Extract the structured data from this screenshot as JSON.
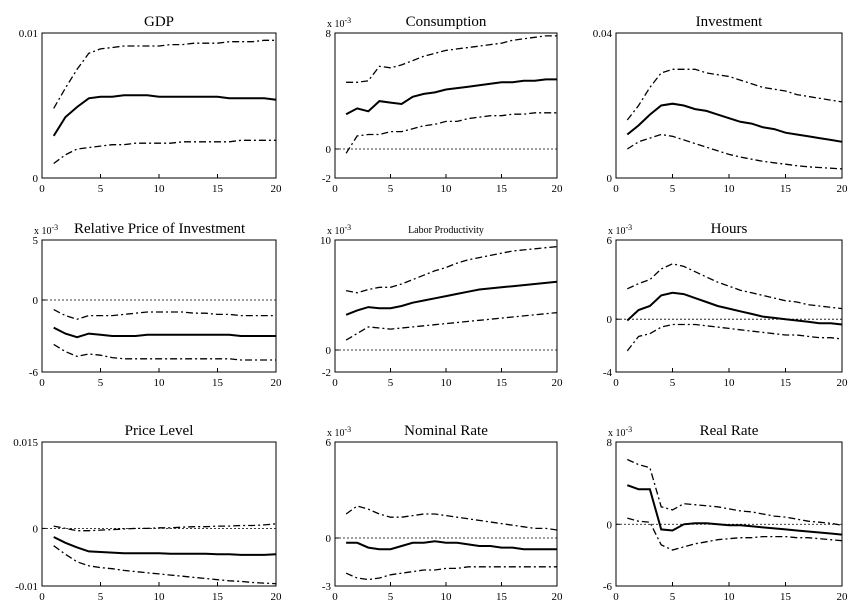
{
  "chart_data": [
    {
      "type": "line",
      "title": "GDP",
      "scale_label": "",
      "x": [
        1,
        2,
        3,
        4,
        5,
        6,
        7,
        8,
        9,
        10,
        11,
        12,
        13,
        14,
        15,
        16,
        17,
        18,
        19,
        20
      ],
      "xlim": [
        0,
        20
      ],
      "xticks": [
        "0",
        "5",
        "10",
        "15",
        "20"
      ],
      "ylim": [
        0,
        0.01
      ],
      "yticks": [
        {
          "v": 0,
          "t": "0"
        },
        {
          "v": 0.01,
          "t": "0.01"
        }
      ],
      "zero_line": false,
      "series": [
        {
          "role": "upper",
          "values": [
            0.0048,
            0.0062,
            0.0075,
            0.0086,
            0.0089,
            0.009,
            0.0091,
            0.0091,
            0.0091,
            0.0091,
            0.0092,
            0.0092,
            0.0093,
            0.0093,
            0.0093,
            0.0094,
            0.0094,
            0.0094,
            0.0095,
            0.0095
          ]
        },
        {
          "role": "median",
          "values": [
            0.0029,
            0.0042,
            0.0049,
            0.0055,
            0.0056,
            0.0056,
            0.0057,
            0.0057,
            0.0057,
            0.0056,
            0.0056,
            0.0056,
            0.0056,
            0.0056,
            0.0056,
            0.0055,
            0.0055,
            0.0055,
            0.0055,
            0.0054
          ]
        },
        {
          "role": "lower",
          "values": [
            0.001,
            0.0016,
            0.002,
            0.0021,
            0.0022,
            0.0023,
            0.0023,
            0.0024,
            0.0024,
            0.0024,
            0.0024,
            0.0025,
            0.0025,
            0.0025,
            0.0025,
            0.0025,
            0.0026,
            0.0026,
            0.0026,
            0.0026
          ]
        }
      ]
    },
    {
      "type": "line",
      "title": "Consumption",
      "scale_label": "x 10",
      "x": [
        1,
        2,
        3,
        4,
        5,
        6,
        7,
        8,
        9,
        10,
        11,
        12,
        13,
        14,
        15,
        16,
        17,
        18,
        19,
        20
      ],
      "xlim": [
        0,
        20
      ],
      "xticks": [
        "0",
        "5",
        "10",
        "15",
        "20"
      ],
      "ylim": [
        -2,
        8
      ],
      "yticks": [
        {
          "v": -2,
          "t": "-2"
        },
        {
          "v": 0,
          "t": "0"
        },
        {
          "v": 8,
          "t": "8"
        }
      ],
      "zero_line": true,
      "series": [
        {
          "role": "upper",
          "values": [
            4.6,
            4.6,
            4.7,
            5.7,
            5.6,
            5.8,
            6.1,
            6.4,
            6.6,
            6.8,
            6.9,
            7.0,
            7.1,
            7.2,
            7.3,
            7.5,
            7.6,
            7.7,
            7.8,
            7.8
          ]
        },
        {
          "role": "median",
          "values": [
            2.4,
            2.8,
            2.6,
            3.3,
            3.2,
            3.1,
            3.6,
            3.8,
            3.9,
            4.1,
            4.2,
            4.3,
            4.4,
            4.5,
            4.6,
            4.6,
            4.7,
            4.7,
            4.8,
            4.8
          ]
        },
        {
          "role": "lower",
          "values": [
            -0.3,
            0.9,
            1.0,
            1.0,
            1.2,
            1.2,
            1.4,
            1.6,
            1.7,
            1.9,
            1.9,
            2.1,
            2.2,
            2.3,
            2.3,
            2.4,
            2.4,
            2.5,
            2.5,
            2.5
          ]
        }
      ]
    },
    {
      "type": "line",
      "title": "Investment",
      "scale_label": "",
      "x": [
        1,
        2,
        3,
        4,
        5,
        6,
        7,
        8,
        9,
        10,
        11,
        12,
        13,
        14,
        15,
        16,
        17,
        18,
        19,
        20
      ],
      "xlim": [
        0,
        20
      ],
      "xticks": [
        "0",
        "5",
        "10",
        "15",
        "20"
      ],
      "ylim": [
        0,
        0.04
      ],
      "yticks": [
        {
          "v": 0,
          "t": "0"
        },
        {
          "v": 0.04,
          "t": "0.04"
        }
      ],
      "zero_line": false,
      "series": [
        {
          "role": "upper",
          "values": [
            0.016,
            0.02,
            0.025,
            0.029,
            0.03,
            0.03,
            0.03,
            0.029,
            0.0285,
            0.028,
            0.027,
            0.026,
            0.025,
            0.0245,
            0.024,
            0.023,
            0.0225,
            0.022,
            0.0215,
            0.021
          ]
        },
        {
          "role": "median",
          "values": [
            0.012,
            0.0145,
            0.0175,
            0.02,
            0.0205,
            0.02,
            0.019,
            0.0185,
            0.0175,
            0.0165,
            0.0155,
            0.015,
            0.014,
            0.0135,
            0.0125,
            0.012,
            0.0115,
            0.011,
            0.0105,
            0.01
          ]
        },
        {
          "role": "lower",
          "values": [
            0.008,
            0.01,
            0.011,
            0.012,
            0.0115,
            0.0105,
            0.0095,
            0.0085,
            0.0075,
            0.0065,
            0.0058,
            0.0052,
            0.0046,
            0.0042,
            0.0038,
            0.0034,
            0.0031,
            0.0029,
            0.0027,
            0.0025
          ]
        }
      ]
    },
    {
      "type": "line",
      "title": "Relative Price of Investment",
      "scale_label": "x 10",
      "x": [
        1,
        2,
        3,
        4,
        5,
        6,
        7,
        8,
        9,
        10,
        11,
        12,
        13,
        14,
        15,
        16,
        17,
        18,
        19,
        20
      ],
      "xlim": [
        0,
        20
      ],
      "xticks": [
        "0",
        "5",
        "10",
        "15",
        "20"
      ],
      "ylim": [
        -6,
        5
      ],
      "yticks": [
        {
          "v": -6,
          "t": "-6"
        },
        {
          "v": 0,
          "t": "0"
        },
        {
          "v": 5,
          "t": "5"
        }
      ],
      "zero_line": true,
      "series": [
        {
          "role": "upper",
          "values": [
            -0.8,
            -1.3,
            -1.6,
            -1.3,
            -1.3,
            -1.3,
            -1.2,
            -1.1,
            -1.0,
            -1.0,
            -1.0,
            -1.0,
            -1.1,
            -1.1,
            -1.2,
            -1.2,
            -1.3,
            -1.3,
            -1.3,
            -1.3
          ]
        },
        {
          "role": "median",
          "values": [
            -2.3,
            -2.8,
            -3.1,
            -2.8,
            -2.9,
            -3.0,
            -3.0,
            -3.0,
            -2.9,
            -2.9,
            -2.9,
            -2.9,
            -2.9,
            -2.9,
            -2.9,
            -2.9,
            -3.0,
            -3.0,
            -3.0,
            -3.0
          ]
        },
        {
          "role": "lower",
          "values": [
            -3.7,
            -4.3,
            -4.7,
            -4.5,
            -4.6,
            -4.8,
            -4.9,
            -4.9,
            -4.9,
            -4.9,
            -4.9,
            -4.9,
            -4.9,
            -4.9,
            -4.9,
            -4.9,
            -5.0,
            -5.0,
            -5.0,
            -5.0
          ]
        }
      ]
    },
    {
      "type": "line",
      "title": "Labor Productivity",
      "scale_label": "x 10",
      "x": [
        1,
        2,
        3,
        4,
        5,
        6,
        7,
        8,
        9,
        10,
        11,
        12,
        13,
        14,
        15,
        16,
        17,
        18,
        19,
        20
      ],
      "xlim": [
        0,
        20
      ],
      "xticks": [
        "0",
        "5",
        "10",
        "15",
        "20"
      ],
      "ylim": [
        -2,
        10
      ],
      "yticks": [
        {
          "v": -2,
          "t": "-2"
        },
        {
          "v": 0,
          "t": "0"
        },
        {
          "v": 10,
          "t": "10"
        }
      ],
      "zero_line": true,
      "series": [
        {
          "role": "upper",
          "values": [
            5.4,
            5.2,
            5.5,
            5.7,
            5.7,
            6.0,
            6.4,
            6.8,
            7.2,
            7.5,
            7.9,
            8.2,
            8.4,
            8.6,
            8.8,
            9.0,
            9.1,
            9.2,
            9.3,
            9.4
          ]
        },
        {
          "role": "median",
          "values": [
            3.2,
            3.6,
            3.9,
            3.8,
            3.8,
            4.0,
            4.3,
            4.5,
            4.7,
            4.9,
            5.1,
            5.3,
            5.5,
            5.6,
            5.7,
            5.8,
            5.9,
            6.0,
            6.1,
            6.2
          ]
        },
        {
          "role": "lower",
          "values": [
            0.9,
            1.5,
            2.1,
            2.0,
            1.9,
            2.0,
            2.1,
            2.2,
            2.3,
            2.4,
            2.5,
            2.6,
            2.7,
            2.8,
            2.9,
            3.0,
            3.1,
            3.2,
            3.3,
            3.4
          ]
        }
      ]
    },
    {
      "type": "line",
      "title": "Hours",
      "scale_label": "x 10",
      "x": [
        1,
        2,
        3,
        4,
        5,
        6,
        7,
        8,
        9,
        10,
        11,
        12,
        13,
        14,
        15,
        16,
        17,
        18,
        19,
        20
      ],
      "xlim": [
        0,
        20
      ],
      "xticks": [
        "0",
        "5",
        "10",
        "15",
        "20"
      ],
      "ylim": [
        -4,
        6
      ],
      "yticks": [
        {
          "v": -4,
          "t": "-4"
        },
        {
          "v": 0,
          "t": "0"
        },
        {
          "v": 6,
          "t": "6"
        }
      ],
      "zero_line": true,
      "series": [
        {
          "role": "upper",
          "values": [
            2.3,
            2.7,
            3.0,
            3.8,
            4.2,
            4.0,
            3.6,
            3.2,
            2.8,
            2.5,
            2.2,
            2.0,
            1.8,
            1.6,
            1.4,
            1.3,
            1.1,
            1.0,
            0.9,
            0.8
          ]
        },
        {
          "role": "median",
          "values": [
            -0.1,
            0.7,
            1.0,
            1.8,
            2.0,
            1.9,
            1.6,
            1.3,
            1.0,
            0.8,
            0.6,
            0.4,
            0.2,
            0.1,
            0.0,
            -0.1,
            -0.2,
            -0.3,
            -0.3,
            -0.4
          ]
        },
        {
          "role": "lower",
          "values": [
            -2.4,
            -1.3,
            -1.1,
            -0.6,
            -0.4,
            -0.4,
            -0.4,
            -0.5,
            -0.6,
            -0.7,
            -0.8,
            -0.9,
            -1.0,
            -1.1,
            -1.2,
            -1.2,
            -1.3,
            -1.4,
            -1.4,
            -1.5
          ]
        }
      ]
    },
    {
      "type": "line",
      "title": "Price Level",
      "scale_label": "",
      "x": [
        1,
        2,
        3,
        4,
        5,
        6,
        7,
        8,
        9,
        10,
        11,
        12,
        13,
        14,
        15,
        16,
        17,
        18,
        19,
        20
      ],
      "xlim": [
        0,
        20
      ],
      "xticks": [
        "0",
        "5",
        "10",
        "15",
        "20"
      ],
      "ylim": [
        -0.01,
        0.015
      ],
      "yticks": [
        {
          "v": -0.01,
          "t": "-0.01"
        },
        {
          "v": 0,
          "t": "0"
        },
        {
          "v": 0.015,
          "t": "0.015"
        }
      ],
      "zero_line": true,
      "series": [
        {
          "role": "upper",
          "values": [
            0.0004,
            0.0,
            -0.0004,
            -0.0004,
            -0.0003,
            -0.0002,
            -0.0001,
            0.0,
            0.0,
            0.0001,
            0.0001,
            0.0002,
            0.0003,
            0.0003,
            0.0004,
            0.0004,
            0.0005,
            0.0005,
            0.0006,
            0.0008
          ]
        },
        {
          "role": "median",
          "values": [
            -0.0015,
            -0.0025,
            -0.0033,
            -0.004,
            -0.0041,
            -0.0042,
            -0.0043,
            -0.0043,
            -0.0043,
            -0.0043,
            -0.0044,
            -0.0044,
            -0.0044,
            -0.0044,
            -0.0045,
            -0.0045,
            -0.0046,
            -0.0046,
            -0.0046,
            -0.0045
          ]
        },
        {
          "role": "lower",
          "values": [
            -0.003,
            -0.0045,
            -0.0058,
            -0.0065,
            -0.0068,
            -0.007,
            -0.0073,
            -0.0075,
            -0.0077,
            -0.0079,
            -0.0081,
            -0.0083,
            -0.0085,
            -0.0087,
            -0.0089,
            -0.0091,
            -0.0092,
            -0.0094,
            -0.0095,
            -0.0096
          ]
        }
      ]
    },
    {
      "type": "line",
      "title": "Nominal Rate",
      "scale_label": "x 10",
      "x": [
        1,
        2,
        3,
        4,
        5,
        6,
        7,
        8,
        9,
        10,
        11,
        12,
        13,
        14,
        15,
        16,
        17,
        18,
        19,
        20
      ],
      "xlim": [
        0,
        20
      ],
      "xticks": [
        "0",
        "5",
        "10",
        "15",
        "20"
      ],
      "ylim": [
        -3,
        6
      ],
      "yticks": [
        {
          "v": -3,
          "t": "-3"
        },
        {
          "v": 0,
          "t": "0"
        },
        {
          "v": 6,
          "t": "6"
        }
      ],
      "zero_line": true,
      "series": [
        {
          "role": "upper",
          "values": [
            1.5,
            2.0,
            1.8,
            1.5,
            1.3,
            1.3,
            1.4,
            1.5,
            1.5,
            1.4,
            1.3,
            1.2,
            1.1,
            1.0,
            0.9,
            0.8,
            0.7,
            0.6,
            0.6,
            0.5
          ]
        },
        {
          "role": "median",
          "values": [
            -0.3,
            -0.3,
            -0.6,
            -0.7,
            -0.7,
            -0.5,
            -0.3,
            -0.3,
            -0.2,
            -0.3,
            -0.3,
            -0.4,
            -0.5,
            -0.5,
            -0.6,
            -0.6,
            -0.7,
            -0.7,
            -0.7,
            -0.7
          ]
        },
        {
          "role": "lower",
          "values": [
            -2.2,
            -2.5,
            -2.6,
            -2.5,
            -2.3,
            -2.2,
            -2.1,
            -2.0,
            -2.0,
            -1.9,
            -1.9,
            -1.8,
            -1.8,
            -1.8,
            -1.8,
            -1.8,
            -1.8,
            -1.8,
            -1.8,
            -1.8
          ]
        }
      ]
    },
    {
      "type": "line",
      "title": "Real Rate",
      "scale_label": "x 10",
      "x": [
        1,
        2,
        3,
        4,
        5,
        6,
        7,
        8,
        9,
        10,
        11,
        12,
        13,
        14,
        15,
        16,
        17,
        18,
        19,
        20
      ],
      "xlim": [
        0,
        20
      ],
      "xticks": [
        "0",
        "5",
        "10",
        "15",
        "20"
      ],
      "ylim": [
        -6,
        8
      ],
      "yticks": [
        {
          "v": -6,
          "t": "-6"
        },
        {
          "v": 0,
          "t": "0"
        },
        {
          "v": 8,
          "t": "8"
        }
      ],
      "zero_line": true,
      "series": [
        {
          "role": "upper",
          "values": [
            6.3,
            5.8,
            5.5,
            1.7,
            1.4,
            2.0,
            1.9,
            1.8,
            1.7,
            1.5,
            1.3,
            1.2,
            1.0,
            0.8,
            0.7,
            0.5,
            0.3,
            0.2,
            0.1,
            -0.1
          ]
        },
        {
          "role": "median",
          "values": [
            3.8,
            3.4,
            3.4,
            -0.5,
            -0.6,
            0.0,
            0.1,
            0.1,
            0.0,
            -0.1,
            -0.1,
            -0.2,
            -0.3,
            -0.4,
            -0.5,
            -0.6,
            -0.7,
            -0.8,
            -0.9,
            -1.0
          ]
        },
        {
          "role": "lower",
          "values": [
            0.6,
            0.3,
            0.2,
            -2.0,
            -2.5,
            -2.2,
            -1.9,
            -1.7,
            -1.5,
            -1.4,
            -1.3,
            -1.3,
            -1.2,
            -1.2,
            -1.2,
            -1.3,
            -1.3,
            -1.4,
            -1.5,
            -1.6
          ]
        }
      ]
    }
  ],
  "scale_exponent": "-3"
}
